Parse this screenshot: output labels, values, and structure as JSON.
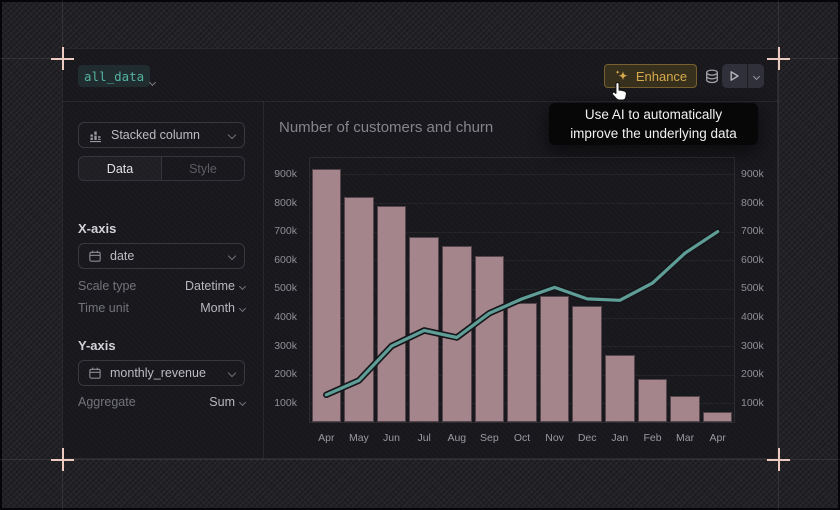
{
  "colors": {
    "accent_teal": "#55b2a2",
    "accent_gold": "#d6aa4c",
    "bar_fill": "#a5858c",
    "line_stroke": "#5f9e96",
    "crosshair": "#eccabf",
    "panel_bg": "#17171c"
  },
  "header": {
    "dataset": {
      "label": "all_data",
      "chevron_icon": "chevron-down-icon"
    },
    "enhance": {
      "label": "Enhance",
      "icon": "sparkles-icon"
    },
    "database_icon": "database-icon",
    "run": {
      "play_icon": "play-icon",
      "chevron_icon": "chevron-down-icon"
    }
  },
  "tooltip": {
    "line1": "Use AI to automatically",
    "line2": "improve the underlying data"
  },
  "sidebar": {
    "chart_type": {
      "value": "Stacked column",
      "icon": "stacked-column-icon"
    },
    "tabs": [
      {
        "label": "Data",
        "active": true
      },
      {
        "label": "Style",
        "active": false
      }
    ],
    "x_axis": {
      "title": "X-axis",
      "field": {
        "value": "date",
        "icon": "calendar-icon"
      },
      "rows": [
        {
          "label": "Scale type",
          "value": "Datetime"
        },
        {
          "label": "Time unit",
          "value": "Month"
        }
      ]
    },
    "y_axis": {
      "title": "Y-axis",
      "field": {
        "value": "monthly_revenue",
        "icon": "calendar-icon"
      },
      "rows": [
        {
          "label": "Aggregate",
          "value": "Sum"
        }
      ]
    }
  },
  "chart": {
    "title": "Number of customers and churn"
  },
  "chart_data": {
    "type": "bar",
    "title": "Number of customers and churn",
    "categories": [
      "Apr",
      "May",
      "Jun",
      "Jul",
      "Aug",
      "Sep",
      "Oct",
      "Nov",
      "Dec",
      "Jan",
      "Feb",
      "Mar",
      "Apr"
    ],
    "series": [
      {
        "name": "monthly_revenue",
        "type": "bar",
        "values": [
          920000,
          820000,
          790000,
          680000,
          650000,
          615000,
          450000,
          475000,
          440000,
          270000,
          185000,
          125000,
          70000
        ]
      },
      {
        "name": "line",
        "type": "line",
        "values": [
          130000,
          180000,
          300000,
          355000,
          330000,
          415000,
          465000,
          505000,
          465000,
          460000,
          520000,
          625000,
          700000
        ]
      }
    ],
    "yticks": [
      100000,
      200000,
      300000,
      400000,
      500000,
      600000,
      700000,
      800000,
      900000
    ],
    "ytick_suffix": "k",
    "ylim": [
      35000,
      957000
    ],
    "grid": true,
    "legend": false,
    "y_axis_labels": "both-sides"
  }
}
